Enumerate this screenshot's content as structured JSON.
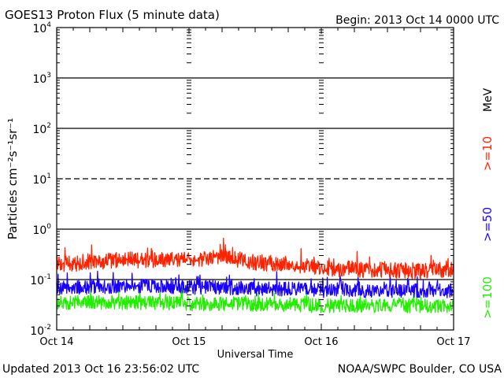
{
  "chart_data": {
    "type": "line",
    "title": "GOES13 Proton Flux (5 minute data)",
    "begin_label": "Begin: 2013 Oct 14 0000 UTC",
    "xlabel": "Universal Time",
    "ylabel": "Particles cm⁻²s⁻¹sr⁻¹",
    "units_label": "MeV",
    "y_scale": "log",
    "ylim": [
      0.01,
      10000
    ],
    "y_ticks": [
      {
        "base": "10",
        "exp": "4",
        "value": 10000
      },
      {
        "base": "10",
        "exp": "3",
        "value": 1000
      },
      {
        "base": "10",
        "exp": "2",
        "value": 100
      },
      {
        "base": "10",
        "exp": "1",
        "value": 10
      },
      {
        "base": "10",
        "exp": "0",
        "value": 1
      },
      {
        "base": "10",
        "exp": "-1",
        "value": 0.1
      },
      {
        "base": "10",
        "exp": "-2",
        "value": 0.01
      }
    ],
    "x_ticks": [
      "Oct 14",
      "Oct 15",
      "Oct 16",
      "Oct 17"
    ],
    "xlim": [
      "2013-10-14 00:00",
      "2013-10-17 00:00"
    ],
    "data_end": "2013-10-16 23:56",
    "grid": "horizontal lines at each decade; dashed line at 10^1",
    "series": [
      {
        "name": ">=10",
        "color": "#ff2200",
        "points_6h": [
          {
            "t": "2013-10-14 00:00",
            "v": 0.2
          },
          {
            "t": "2013-10-14 06:00",
            "v": 0.22
          },
          {
            "t": "2013-10-14 12:00",
            "v": 0.25
          },
          {
            "t": "2013-10-14 18:00",
            "v": 0.24
          },
          {
            "t": "2013-10-15 00:00",
            "v": 0.25
          },
          {
            "t": "2013-10-15 06:00",
            "v": 0.28
          },
          {
            "t": "2013-10-15 12:00",
            "v": 0.22
          },
          {
            "t": "2013-10-15 18:00",
            "v": 0.2
          },
          {
            "t": "2013-10-16 00:00",
            "v": 0.17
          },
          {
            "t": "2013-10-16 06:00",
            "v": 0.16
          },
          {
            "t": "2013-10-16 12:00",
            "v": 0.15
          },
          {
            "t": "2013-10-16 18:00",
            "v": 0.15
          },
          {
            "t": "2013-10-16 23:56",
            "v": 0.16
          }
        ]
      },
      {
        "name": ">=50",
        "color": "#1a00ff",
        "points_6h": [
          {
            "t": "2013-10-14 00:00",
            "v": 0.07
          },
          {
            "t": "2013-10-14 06:00",
            "v": 0.07
          },
          {
            "t": "2013-10-14 12:00",
            "v": 0.075
          },
          {
            "t": "2013-10-14 18:00",
            "v": 0.075
          },
          {
            "t": "2013-10-15 00:00",
            "v": 0.07
          },
          {
            "t": "2013-10-15 06:00",
            "v": 0.07
          },
          {
            "t": "2013-10-15 12:00",
            "v": 0.065
          },
          {
            "t": "2013-10-15 18:00",
            "v": 0.065
          },
          {
            "t": "2013-10-16 00:00",
            "v": 0.06
          },
          {
            "t": "2013-10-16 06:00",
            "v": 0.06
          },
          {
            "t": "2013-10-16 12:00",
            "v": 0.06
          },
          {
            "t": "2013-10-16 18:00",
            "v": 0.06
          },
          {
            "t": "2013-10-16 23:56",
            "v": 0.06
          }
        ]
      },
      {
        "name": ">=100",
        "color": "#22ee00",
        "points_6h": [
          {
            "t": "2013-10-14 00:00",
            "v": 0.035
          },
          {
            "t": "2013-10-14 06:00",
            "v": 0.035
          },
          {
            "t": "2013-10-14 12:00",
            "v": 0.035
          },
          {
            "t": "2013-10-14 18:00",
            "v": 0.035
          },
          {
            "t": "2013-10-15 00:00",
            "v": 0.033
          },
          {
            "t": "2013-10-15 06:00",
            "v": 0.033
          },
          {
            "t": "2013-10-15 12:00",
            "v": 0.032
          },
          {
            "t": "2013-10-15 18:00",
            "v": 0.032
          },
          {
            "t": "2013-10-16 00:00",
            "v": 0.03
          },
          {
            "t": "2013-10-16 06:00",
            "v": 0.03
          },
          {
            "t": "2013-10-16 12:00",
            "v": 0.03
          },
          {
            "t": "2013-10-16 18:00",
            "v": 0.03
          },
          {
            "t": "2013-10-16 23:56",
            "v": 0.03
          }
        ]
      }
    ]
  },
  "footer": {
    "updated": "Updated 2013 Oct 16 23:56:02 UTC",
    "credit": "NOAA/SWPC Boulder, CO USA"
  }
}
